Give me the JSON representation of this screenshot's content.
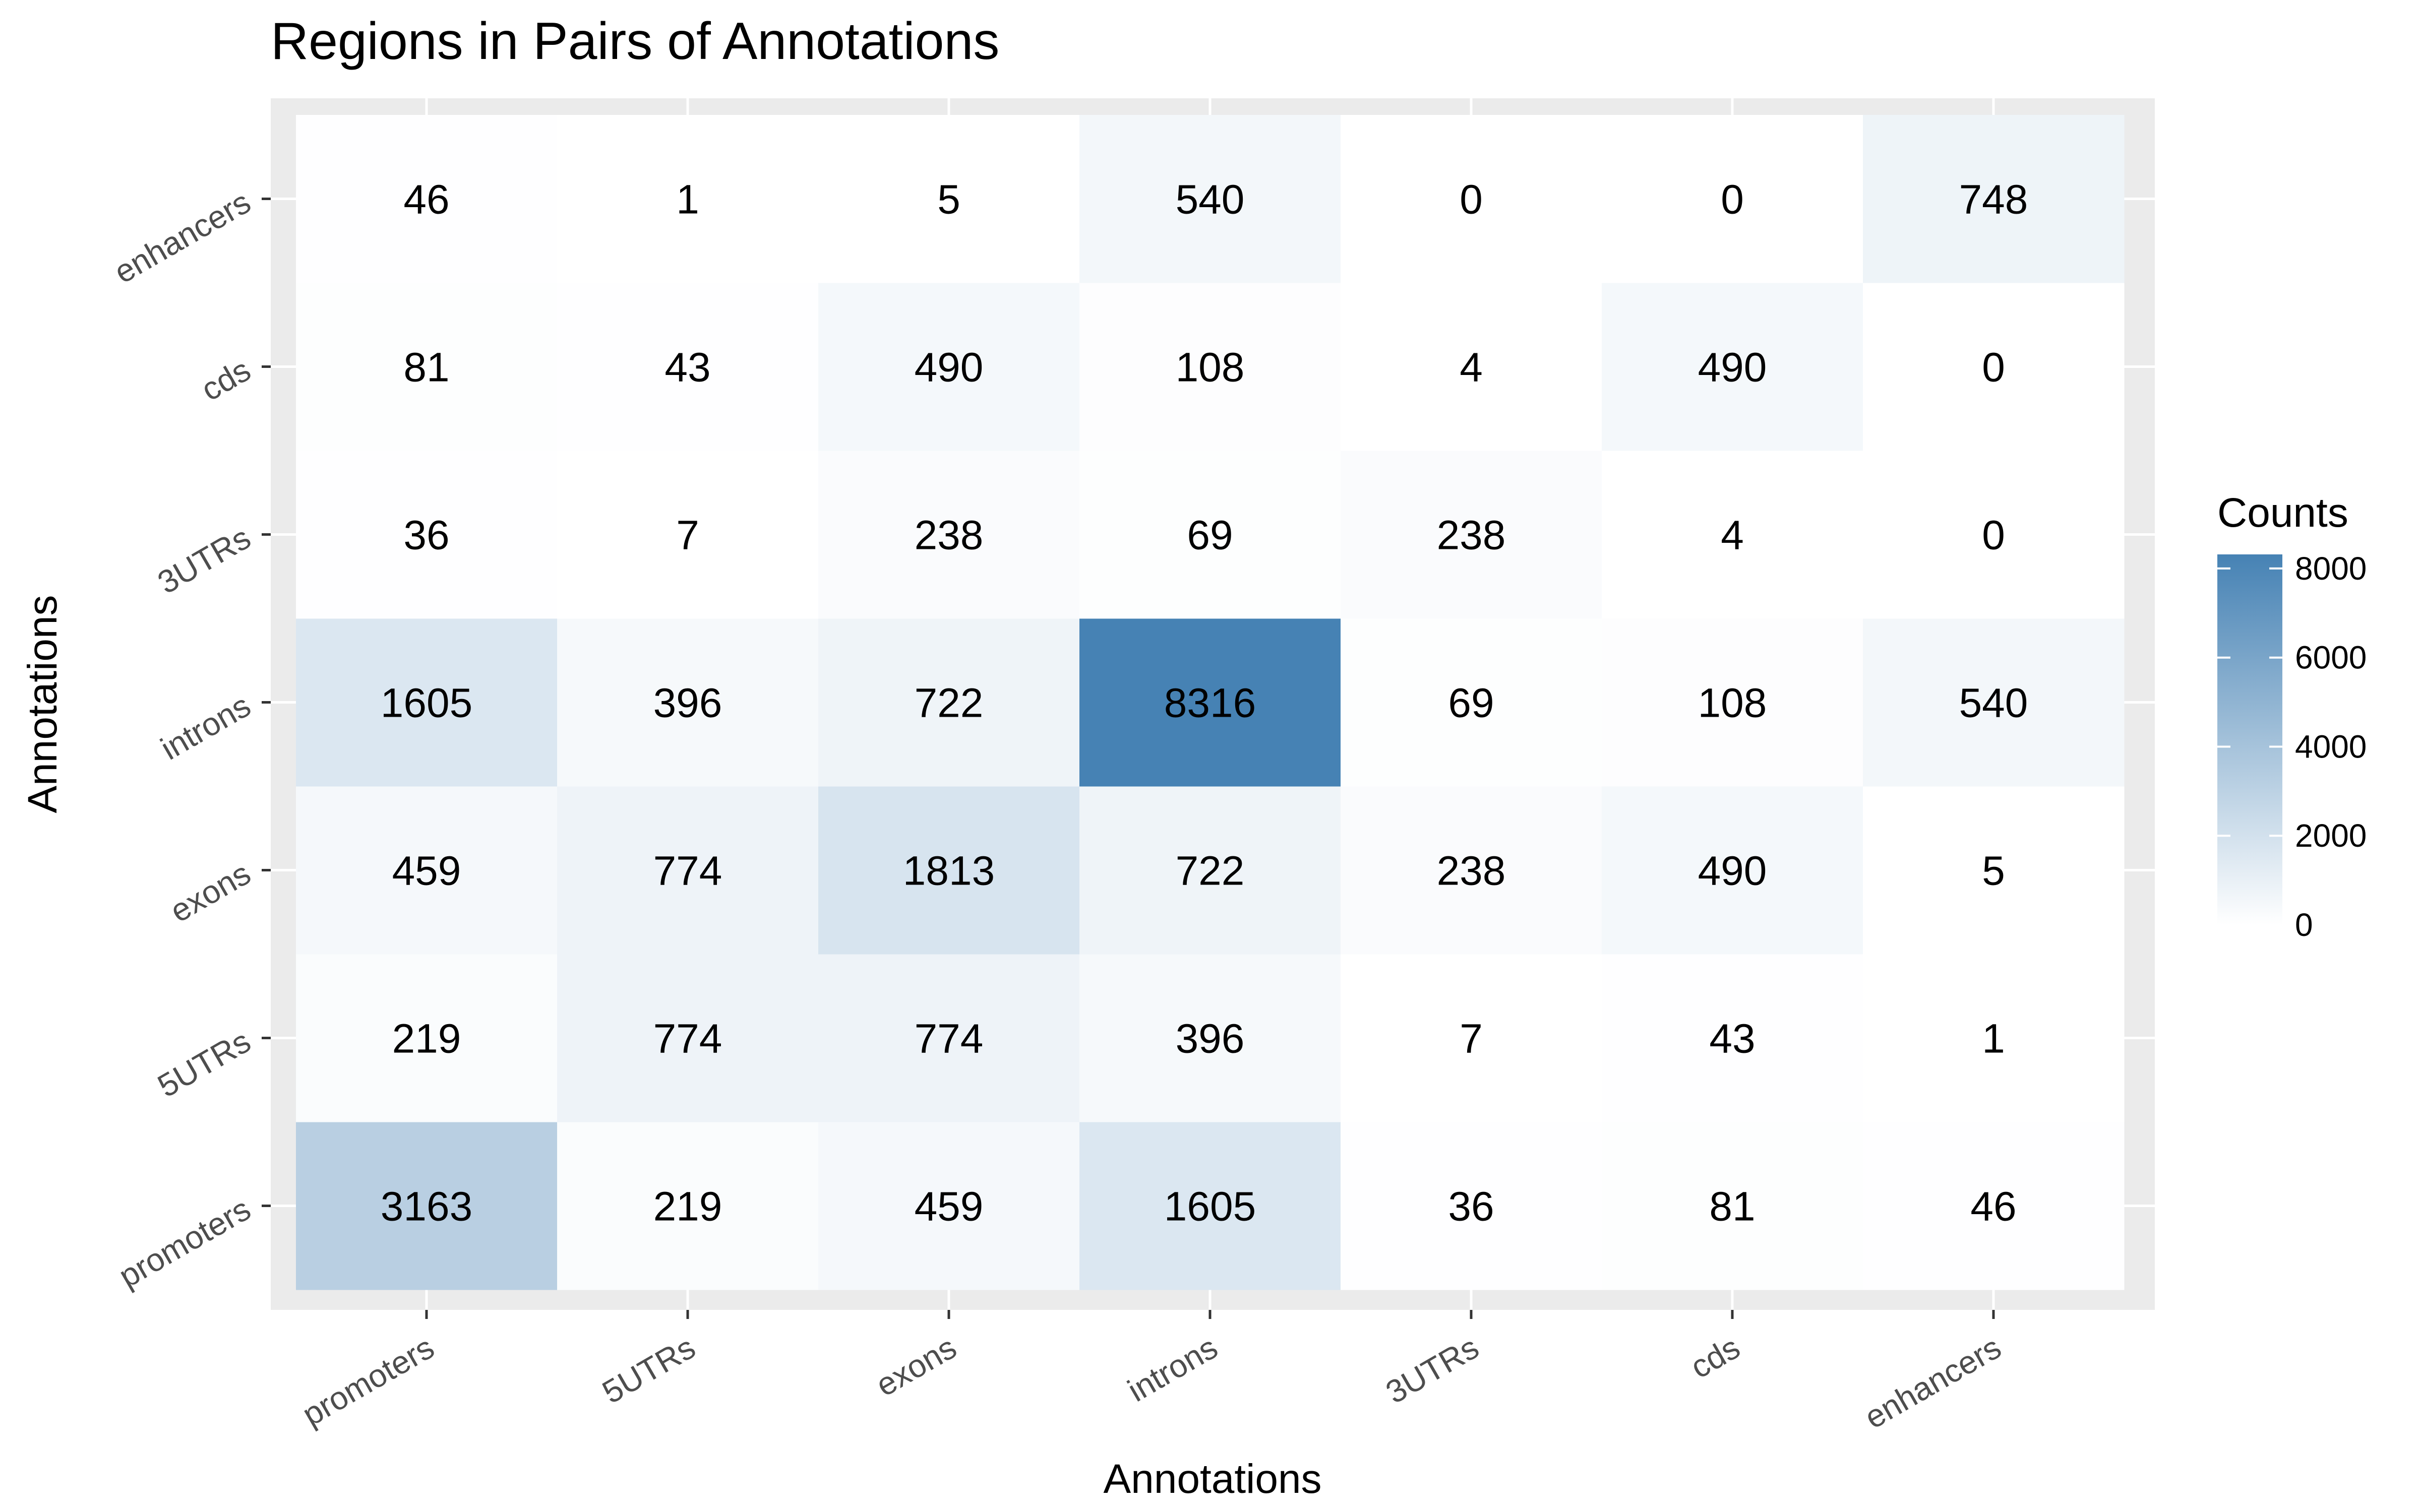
{
  "chart_data": {
    "type": "heatmap",
    "title": "Regions in Pairs of Annotations",
    "xlabel": "Annotations",
    "ylabel": "Annotations",
    "x_categories": [
      "promoters",
      "5UTRs",
      "exons",
      "introns",
      "3UTRs",
      "cds",
      "enhancers"
    ],
    "y_categories": [
      "promoters",
      "5UTRs",
      "exons",
      "introns",
      "3UTRs",
      "cds",
      "enhancers"
    ],
    "values": [
      [
        3163,
        219,
        459,
        1605,
        36,
        81,
        46
      ],
      [
        219,
        774,
        774,
        396,
        7,
        43,
        1
      ],
      [
        459,
        774,
        1813,
        722,
        238,
        490,
        5
      ],
      [
        1605,
        396,
        722,
        8316,
        69,
        108,
        540
      ],
      [
        36,
        7,
        238,
        69,
        238,
        4,
        0
      ],
      [
        81,
        43,
        490,
        108,
        4,
        490,
        0
      ],
      [
        46,
        1,
        5,
        540,
        0,
        0,
        748
      ]
    ],
    "legend": {
      "title": "Counts",
      "ticks": [
        0,
        2000,
        4000,
        6000,
        8000
      ],
      "tick_labels": [
        "0",
        "2000",
        "4000",
        "6000",
        "8000"
      ],
      "range": [
        0,
        8316
      ],
      "placement": "right"
    },
    "colors": {
      "low": "#ffffff",
      "high": "#4682b4",
      "panel_background": "#ebebeb",
      "grid": "#ffffff"
    }
  }
}
